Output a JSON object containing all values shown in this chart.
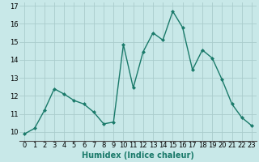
{
  "x": [
    0,
    1,
    2,
    3,
    4,
    5,
    6,
    7,
    8,
    9,
    10,
    11,
    12,
    13,
    14,
    15,
    16,
    17,
    18,
    19,
    20,
    21,
    22,
    23
  ],
  "y": [
    9.9,
    10.2,
    11.2,
    12.4,
    12.1,
    11.75,
    11.55,
    11.1,
    10.45,
    10.55,
    14.85,
    12.45,
    14.45,
    15.5,
    15.1,
    16.7,
    15.8,
    13.45,
    14.55,
    14.1,
    12.9,
    11.55,
    10.8,
    10.35
  ],
  "line_color": "#1a7a6a",
  "marker": "D",
  "marker_size": 2,
  "bg_color": "#c8e8e8",
  "grid_color": "#aacccc",
  "xlabel": "Humidex (Indice chaleur)",
  "ylim": [
    9.5,
    17.2
  ],
  "xlim": [
    -0.5,
    23.5
  ],
  "yticks": [
    10,
    11,
    12,
    13,
    14,
    15,
    16,
    17
  ],
  "xticks": [
    0,
    1,
    2,
    3,
    4,
    5,
    6,
    7,
    8,
    9,
    10,
    11,
    12,
    13,
    14,
    15,
    16,
    17,
    18,
    19,
    20,
    21,
    22,
    23
  ],
  "xlabel_color": "#1a7a6a",
  "label_fontsize": 7,
  "tick_fontsize": 6,
  "linewidth": 1.0
}
